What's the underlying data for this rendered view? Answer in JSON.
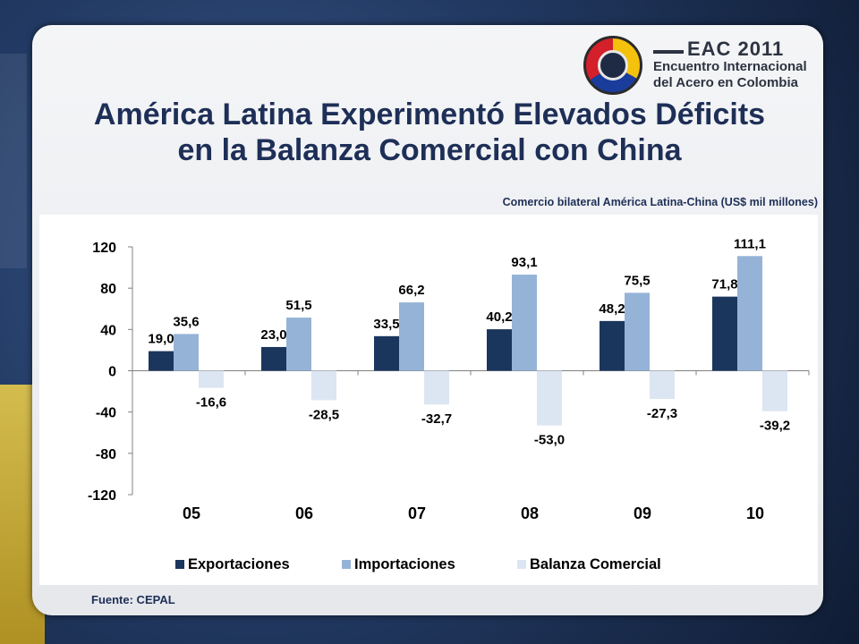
{
  "slide": {
    "title_line1": "América Latina Experimentó Elevados Déficits",
    "title_line2": "en la Balanza Comercial con China",
    "subtitle": "Comercio bilateral América Latina-China (US$ mil millones)",
    "source": "Fuente: CEPAL"
  },
  "logo": {
    "line1": "EAC 2011",
    "line2": "Encuentro Internacional",
    "line3": "del Acero en Colombia"
  },
  "colors": {
    "exportaciones": "#1b365d",
    "importaciones": "#95b3d7",
    "balanza": "#dce6f2"
  },
  "chart_data": {
    "type": "bar",
    "title": "Comercio bilateral América Latina-China (US$ mil millones)",
    "categories": [
      "05",
      "06",
      "07",
      "08",
      "09",
      "10"
    ],
    "series": [
      {
        "name": "Exportaciones",
        "values": [
          19.0,
          23.0,
          33.5,
          40.2,
          48.2,
          71.8
        ],
        "labels": [
          "19,0",
          "23,0",
          "33,5",
          "40,2",
          "48,2",
          "71,8"
        ]
      },
      {
        "name": "Importaciones",
        "values": [
          35.6,
          51.5,
          66.2,
          93.1,
          75.5,
          111.1
        ],
        "labels": [
          "35,6",
          "51,5",
          "66,2",
          "93,1",
          "75,5",
          "111,1"
        ]
      },
      {
        "name": "Balanza Comercial",
        "values": [
          -16.6,
          -28.5,
          -32.7,
          -53.0,
          -27.3,
          -39.2
        ],
        "labels": [
          "-16,6",
          "-28,5",
          "-32,7",
          "-53,0",
          "-27,3",
          "-39,2"
        ]
      }
    ],
    "yticks": [
      "120",
      "80",
      "40",
      "0",
      "-40",
      "-80",
      "-120"
    ],
    "ylim": [
      -120,
      120
    ],
    "xlabel": "",
    "ylabel": "",
    "legend_position": "bottom"
  }
}
